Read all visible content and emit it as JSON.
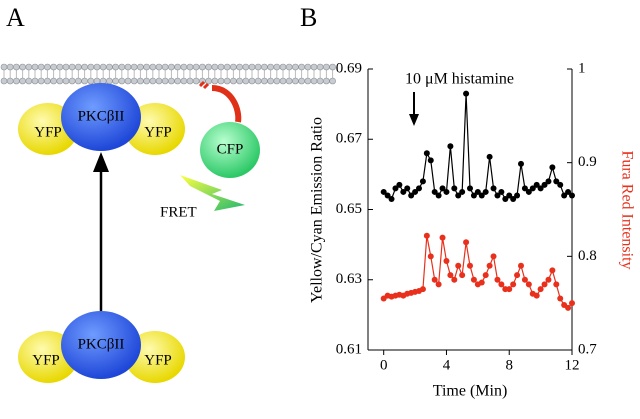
{
  "panel_a": {
    "label": "A",
    "kinase_top": "PKCβII",
    "kinase_bottom": "PKCβII",
    "yfp_labels": [
      "YFP",
      "YFP",
      "YFP",
      "YFP"
    ],
    "cfp": "CFP",
    "fret": "FRET"
  },
  "chart_data": {
    "type": "line",
    "panel_label": "B",
    "annotation": "10 μM histamine",
    "xlabel": "Time (Min)",
    "ylabel": "Yellow/Cyan Emission Ratio",
    "y2label": "Fura Red Intensity",
    "xlim": [
      -1,
      12
    ],
    "xticks": [
      0,
      4,
      8,
      12
    ],
    "ylim": [
      0.61,
      0.69
    ],
    "yticks": [
      0.61,
      0.63,
      0.65,
      0.67,
      0.69
    ],
    "y2lim": [
      0.7,
      1
    ],
    "y2ticks": [
      0.7,
      0.8,
      0.9,
      1
    ],
    "x": [
      0,
      0.25,
      0.5,
      0.75,
      1,
      1.25,
      1.5,
      1.75,
      2,
      2.25,
      2.5,
      2.75,
      3,
      3.25,
      3.5,
      3.75,
      4,
      4.25,
      4.5,
      4.75,
      5,
      5.25,
      5.5,
      5.75,
      6,
      6.25,
      6.5,
      6.75,
      7,
      7.25,
      7.5,
      7.75,
      8,
      8.25,
      8.5,
      8.75,
      9,
      9.25,
      9.5,
      9.75,
      10,
      10.25,
      10.5,
      10.75,
      11,
      11.25,
      11.5,
      11.75,
      12
    ],
    "series": [
      {
        "color": "#000000",
        "values": [
          0.655,
          0.654,
          0.653,
          0.656,
          0.657,
          0.655,
          0.656,
          0.654,
          0.655,
          0.656,
          0.658,
          0.666,
          0.664,
          0.655,
          0.654,
          0.656,
          0.655,
          0.668,
          0.656,
          0.654,
          0.655,
          0.683,
          0.656,
          0.654,
          0.655,
          0.654,
          0.655,
          0.665,
          0.656,
          0.654,
          0.655,
          0.653,
          0.654,
          0.653,
          0.654,
          0.663,
          0.656,
          0.655,
          0.656,
          0.657,
          0.656,
          0.657,
          0.658,
          0.662,
          0.658,
          0.657,
          0.654,
          0.655,
          0.654
        ]
      },
      {
        "color": "#e8301c",
        "axis": "y2",
        "values": [
          0.755,
          0.758,
          0.757,
          0.758,
          0.759,
          0.758,
          0.76,
          0.761,
          0.762,
          0.763,
          0.765,
          0.822,
          0.8,
          0.775,
          0.77,
          0.82,
          0.795,
          0.78,
          0.775,
          0.79,
          0.78,
          0.815,
          0.79,
          0.775,
          0.77,
          0.772,
          0.78,
          0.79,
          0.8,
          0.775,
          0.77,
          0.765,
          0.765,
          0.77,
          0.78,
          0.79,
          0.775,
          0.77,
          0.76,
          0.758,
          0.765,
          0.77,
          0.775,
          0.785,
          0.77,
          0.755,
          0.748,
          0.745,
          0.75
        ]
      }
    ]
  }
}
